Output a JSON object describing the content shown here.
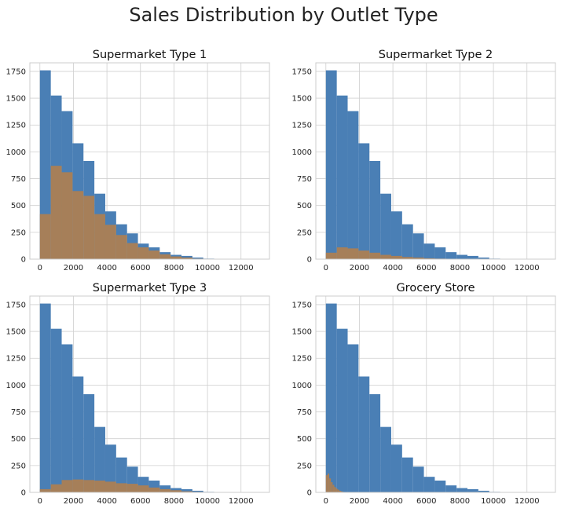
{
  "figure": {
    "title": "Sales Distribution by Outlet Type"
  },
  "chart_data": [
    {
      "type": "histogram",
      "title": "Supermarket Type 1",
      "xlim": [
        -600,
        13700
      ],
      "ylim": [
        0,
        1830
      ],
      "xticks": [
        0,
        2000,
        4000,
        6000,
        8000,
        10000,
        12000
      ],
      "yticks": [
        0,
        250,
        500,
        750,
        1000,
        1250,
        1500,
        1750
      ],
      "bin_edges": [
        0,
        650,
        1300,
        1950,
        2600,
        3250,
        3900,
        4550,
        5200,
        5850,
        6500,
        7150,
        7800,
        8450,
        9100,
        9750,
        10400
      ],
      "grid": true,
      "series": [
        {
          "color": "#4a7fb5",
          "counts": [
            1760,
            1525,
            1380,
            1080,
            915,
            610,
            445,
            325,
            240,
            145,
            110,
            65,
            40,
            30,
            15,
            5
          ]
        },
        {
          "color": "#b07f4f",
          "counts": [
            420,
            870,
            810,
            635,
            590,
            420,
            320,
            225,
            150,
            110,
            80,
            45,
            25,
            15,
            5,
            2
          ]
        }
      ]
    },
    {
      "type": "histogram",
      "title": "Supermarket Type 2",
      "xlim": [
        -600,
        13700
      ],
      "ylim": [
        0,
        1830
      ],
      "xticks": [
        0,
        2000,
        4000,
        6000,
        8000,
        10000,
        12000
      ],
      "yticks": [
        0,
        250,
        500,
        750,
        1000,
        1250,
        1500,
        1750
      ],
      "bin_edges": [
        0,
        650,
        1300,
        1950,
        2600,
        3250,
        3900,
        4550,
        5200,
        5850,
        6500,
        7150,
        7800,
        8450,
        9100,
        9750,
        10400
      ],
      "grid": true,
      "series": [
        {
          "color": "#4a7fb5",
          "counts": [
            1760,
            1525,
            1380,
            1080,
            915,
            610,
            445,
            325,
            240,
            145,
            110,
            65,
            40,
            30,
            15,
            5
          ]
        },
        {
          "color": "#b07f4f",
          "counts": [
            60,
            110,
            100,
            80,
            60,
            40,
            30,
            20,
            15,
            8,
            5,
            3,
            2,
            1,
            0,
            0
          ]
        }
      ]
    },
    {
      "type": "histogram",
      "title": "Supermarket Type 3",
      "xlim": [
        -600,
        13700
      ],
      "ylim": [
        0,
        1830
      ],
      "xticks": [
        0,
        2000,
        4000,
        6000,
        8000,
        10000,
        12000
      ],
      "yticks": [
        0,
        250,
        500,
        750,
        1000,
        1250,
        1500,
        1750
      ],
      "bin_edges": [
        0,
        650,
        1300,
        1950,
        2600,
        3250,
        3900,
        4550,
        5200,
        5850,
        6500,
        7150,
        7800,
        8450,
        9100,
        9750,
        10400
      ],
      "grid": true,
      "series": [
        {
          "color": "#4a7fb5",
          "counts": [
            1760,
            1525,
            1380,
            1080,
            915,
            610,
            445,
            325,
            240,
            145,
            110,
            65,
            40,
            30,
            15,
            5
          ]
        },
        {
          "color": "#b07f4f",
          "counts": [
            30,
            75,
            115,
            120,
            115,
            110,
            100,
            85,
            80,
            65,
            45,
            30,
            20,
            10,
            5,
            2
          ]
        }
      ]
    },
    {
      "type": "histogram",
      "title": "Grocery Store",
      "xlim": [
        -600,
        13700
      ],
      "ylim": [
        0,
        1830
      ],
      "xticks": [
        0,
        2000,
        4000,
        6000,
        8000,
        10000,
        12000
      ],
      "yticks": [
        0,
        250,
        500,
        750,
        1000,
        1250,
        1500,
        1750
      ],
      "bin_edges": [
        0,
        650,
        1300,
        1950,
        2600,
        3250,
        3900,
        4550,
        5200,
        5850,
        6500,
        7150,
        7800,
        8450,
        9100,
        9750,
        10400
      ],
      "grid": true,
      "series": [
        {
          "color": "#4a7fb5",
          "counts": [
            1760,
            1525,
            1380,
            1080,
            915,
            610,
            445,
            325,
            240,
            145,
            110,
            65,
            40,
            30,
            15,
            5
          ]
        },
        {
          "color": "#b07f4f",
          "bin_edges": [
            0,
            100,
            200,
            300,
            400,
            500,
            600,
            700,
            800,
            900,
            1000,
            1100,
            1200
          ],
          "counts": [
            160,
            175,
            130,
            95,
            70,
            50,
            35,
            25,
            15,
            10,
            5,
            3
          ]
        }
      ]
    }
  ]
}
